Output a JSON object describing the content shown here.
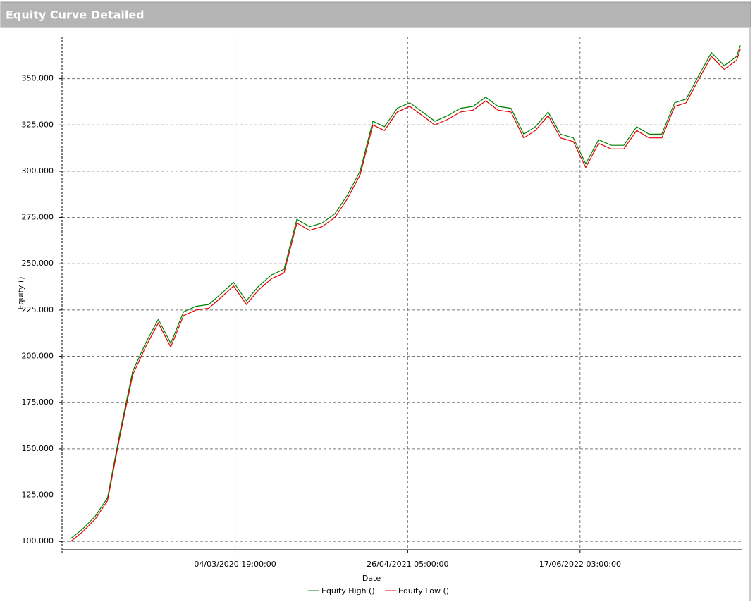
{
  "chart_data": {
    "type": "line",
    "title": "Equity Curve Detailed",
    "x_label": "Date",
    "y_label": "Equity ()",
    "x": [
      "01/02/2019 00:00:00",
      "01/03/2019 00:00:00",
      "01/04/2019 00:00:00",
      "01/05/2019 00:00:00",
      "01/06/2019 00:00:00",
      "01/07/2019 00:00:00",
      "01/08/2019 00:00:00",
      "01/09/2019 00:00:00",
      "01/10/2019 00:00:00",
      "01/11/2019 00:00:00",
      "01/12/2019 00:00:00",
      "01/01/2020 00:00:00",
      "01/02/2020 00:00:00",
      "01/03/2020 00:00:00",
      "01/04/2020 00:00:00",
      "01/05/2020 00:00:00",
      "01/06/2020 00:00:00",
      "01/07/2020 00:00:00",
      "01/08/2020 00:00:00",
      "01/09/2020 00:00:00",
      "01/10/2020 00:00:00",
      "01/11/2020 00:00:00",
      "01/12/2020 00:00:00",
      "01/01/2021 00:00:00",
      "01/02/2021 00:00:00",
      "01/03/2021 00:00:00",
      "01/04/2021 00:00:00",
      "01/05/2021 00:00:00",
      "01/06/2021 00:00:00",
      "01/07/2021 00:00:00",
      "01/08/2021 00:00:00",
      "01/09/2021 00:00:00",
      "01/10/2021 00:00:00",
      "01/11/2021 00:00:00",
      "01/12/2021 00:00:00",
      "01/01/2022 00:00:00",
      "01/02/2022 00:00:00",
      "01/03/2022 00:00:00",
      "01/04/2022 00:00:00",
      "01/05/2022 00:00:00",
      "01/06/2022 00:00:00",
      "01/07/2022 00:00:00",
      "01/08/2022 00:00:00",
      "01/09/2022 00:00:00",
      "01/10/2022 00:00:00",
      "01/11/2022 00:00:00",
      "01/12/2022 00:00:00",
      "01/01/2023 00:00:00",
      "01/02/2023 00:00:00",
      "01/03/2023 00:00:00",
      "01/04/2023 00:00:00",
      "01/05/2023 00:00:00",
      "01/06/2023 00:00:00",
      "01/07/2023 00:00:00",
      "10/07/2023 00:00:00"
    ],
    "series": [
      {
        "name": "Equity High ()",
        "color": "#008000",
        "values": [
          101500,
          106500,
          113500,
          123500,
          160000,
          192000,
          207000,
          220000,
          207000,
          224000,
          227000,
          228000,
          234000,
          240000,
          230000,
          238000,
          244000,
          247000,
          274000,
          270000,
          272000,
          277000,
          287000,
          300000,
          327000,
          324000,
          334000,
          337000,
          332000,
          327000,
          330000,
          334000,
          335000,
          340000,
          335000,
          334000,
          320000,
          324000,
          332000,
          320000,
          318000,
          304000,
          317000,
          314000,
          314000,
          324000,
          320000,
          320000,
          337000,
          339000,
          352000,
          364000,
          357000,
          362000,
          368000
        ]
      },
      {
        "name": "Equity Low ()",
        "color": "#e00000",
        "values": [
          100000,
          105000,
          112000,
          122000,
          158000,
          190000,
          205000,
          218000,
          205000,
          222000,
          225000,
          226000,
          232000,
          238000,
          228000,
          236000,
          242000,
          245000,
          272000,
          268000,
          270000,
          275000,
          285000,
          298000,
          325000,
          322000,
          332000,
          335000,
          330000,
          325000,
          328000,
          332000,
          333000,
          338000,
          333000,
          332000,
          318000,
          322000,
          330000,
          318000,
          316000,
          302000,
          315000,
          312000,
          312000,
          322000,
          318000,
          318000,
          335000,
          337000,
          350000,
          362000,
          355000,
          360000,
          366000
        ]
      }
    ],
    "xlim": [
      "11/01/2019 00:00:00",
      "13/07/2023 00:00:00"
    ],
    "xticks": [
      "04/03/2020 19:00:00",
      "26/04/2021 05:00:00",
      "17/06/2022 03:00:00"
    ],
    "ylim": [
      95500,
      372700
    ],
    "yticks": [
      {
        "value": 100000,
        "label": "100.000"
      },
      {
        "value": 125000,
        "label": "125.000"
      },
      {
        "value": 150000,
        "label": "150.000"
      },
      {
        "value": 175000,
        "label": "175.000"
      },
      {
        "value": 200000,
        "label": "200.000"
      },
      {
        "value": 225000,
        "label": "225.000"
      },
      {
        "value": 250000,
        "label": "250.000"
      },
      {
        "value": 275000,
        "label": "275.000"
      },
      {
        "value": 300000,
        "label": "300.000"
      },
      {
        "value": 325000,
        "label": "325.000"
      },
      {
        "value": 350000,
        "label": "350.000"
      }
    ],
    "grid": true
  }
}
